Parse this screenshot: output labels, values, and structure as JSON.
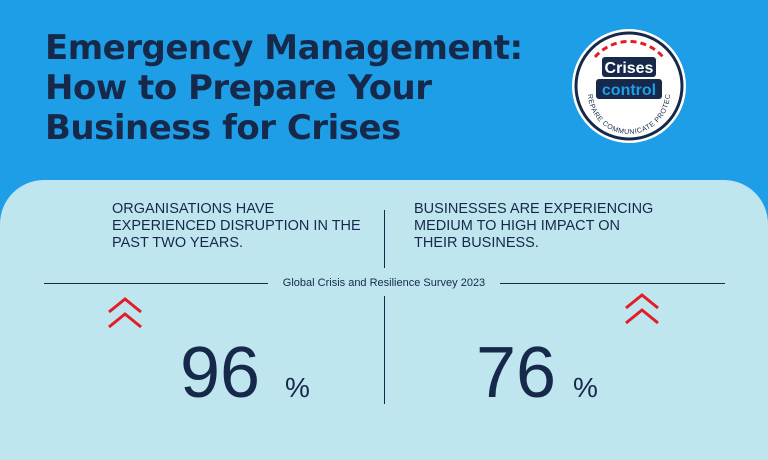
{
  "header": {
    "title_lines": [
      "Emergency Management:",
      "How to Prepare Your",
      "Business for Crises"
    ]
  },
  "logo": {
    "word1": "Crises",
    "word2": "control",
    "tagline": "PREPARE COMMUNICATE PROTECT",
    "colors": {
      "ring": "#16294a",
      "accent": "#e21d26",
      "fill": "#ffffff",
      "brand_blue": "#1f9ee8"
    }
  },
  "stats": [
    {
      "lines": [
        "ORGANISATIONS HAVE",
        "EXPERIENCED DISRUPTION IN THE",
        "PAST TWO YEARS."
      ],
      "value": "96",
      "unit": "%",
      "icon": "double-chevron-up-icon"
    },
    {
      "lines": [
        "BUSINESSES ARE EXPERIENCING",
        "MEDIUM TO HIGH IMPACT ON",
        "THEIR BUSINESS."
      ],
      "value": "76",
      "unit": "%",
      "icon": "double-chevron-up-icon"
    }
  ],
  "source": "Global Crisis and Resilience Survey 2023",
  "colors": {
    "background": "#1f9ee8",
    "panel": "#bfe5ef",
    "text": "#16294a",
    "chevron": "#e21d26"
  }
}
